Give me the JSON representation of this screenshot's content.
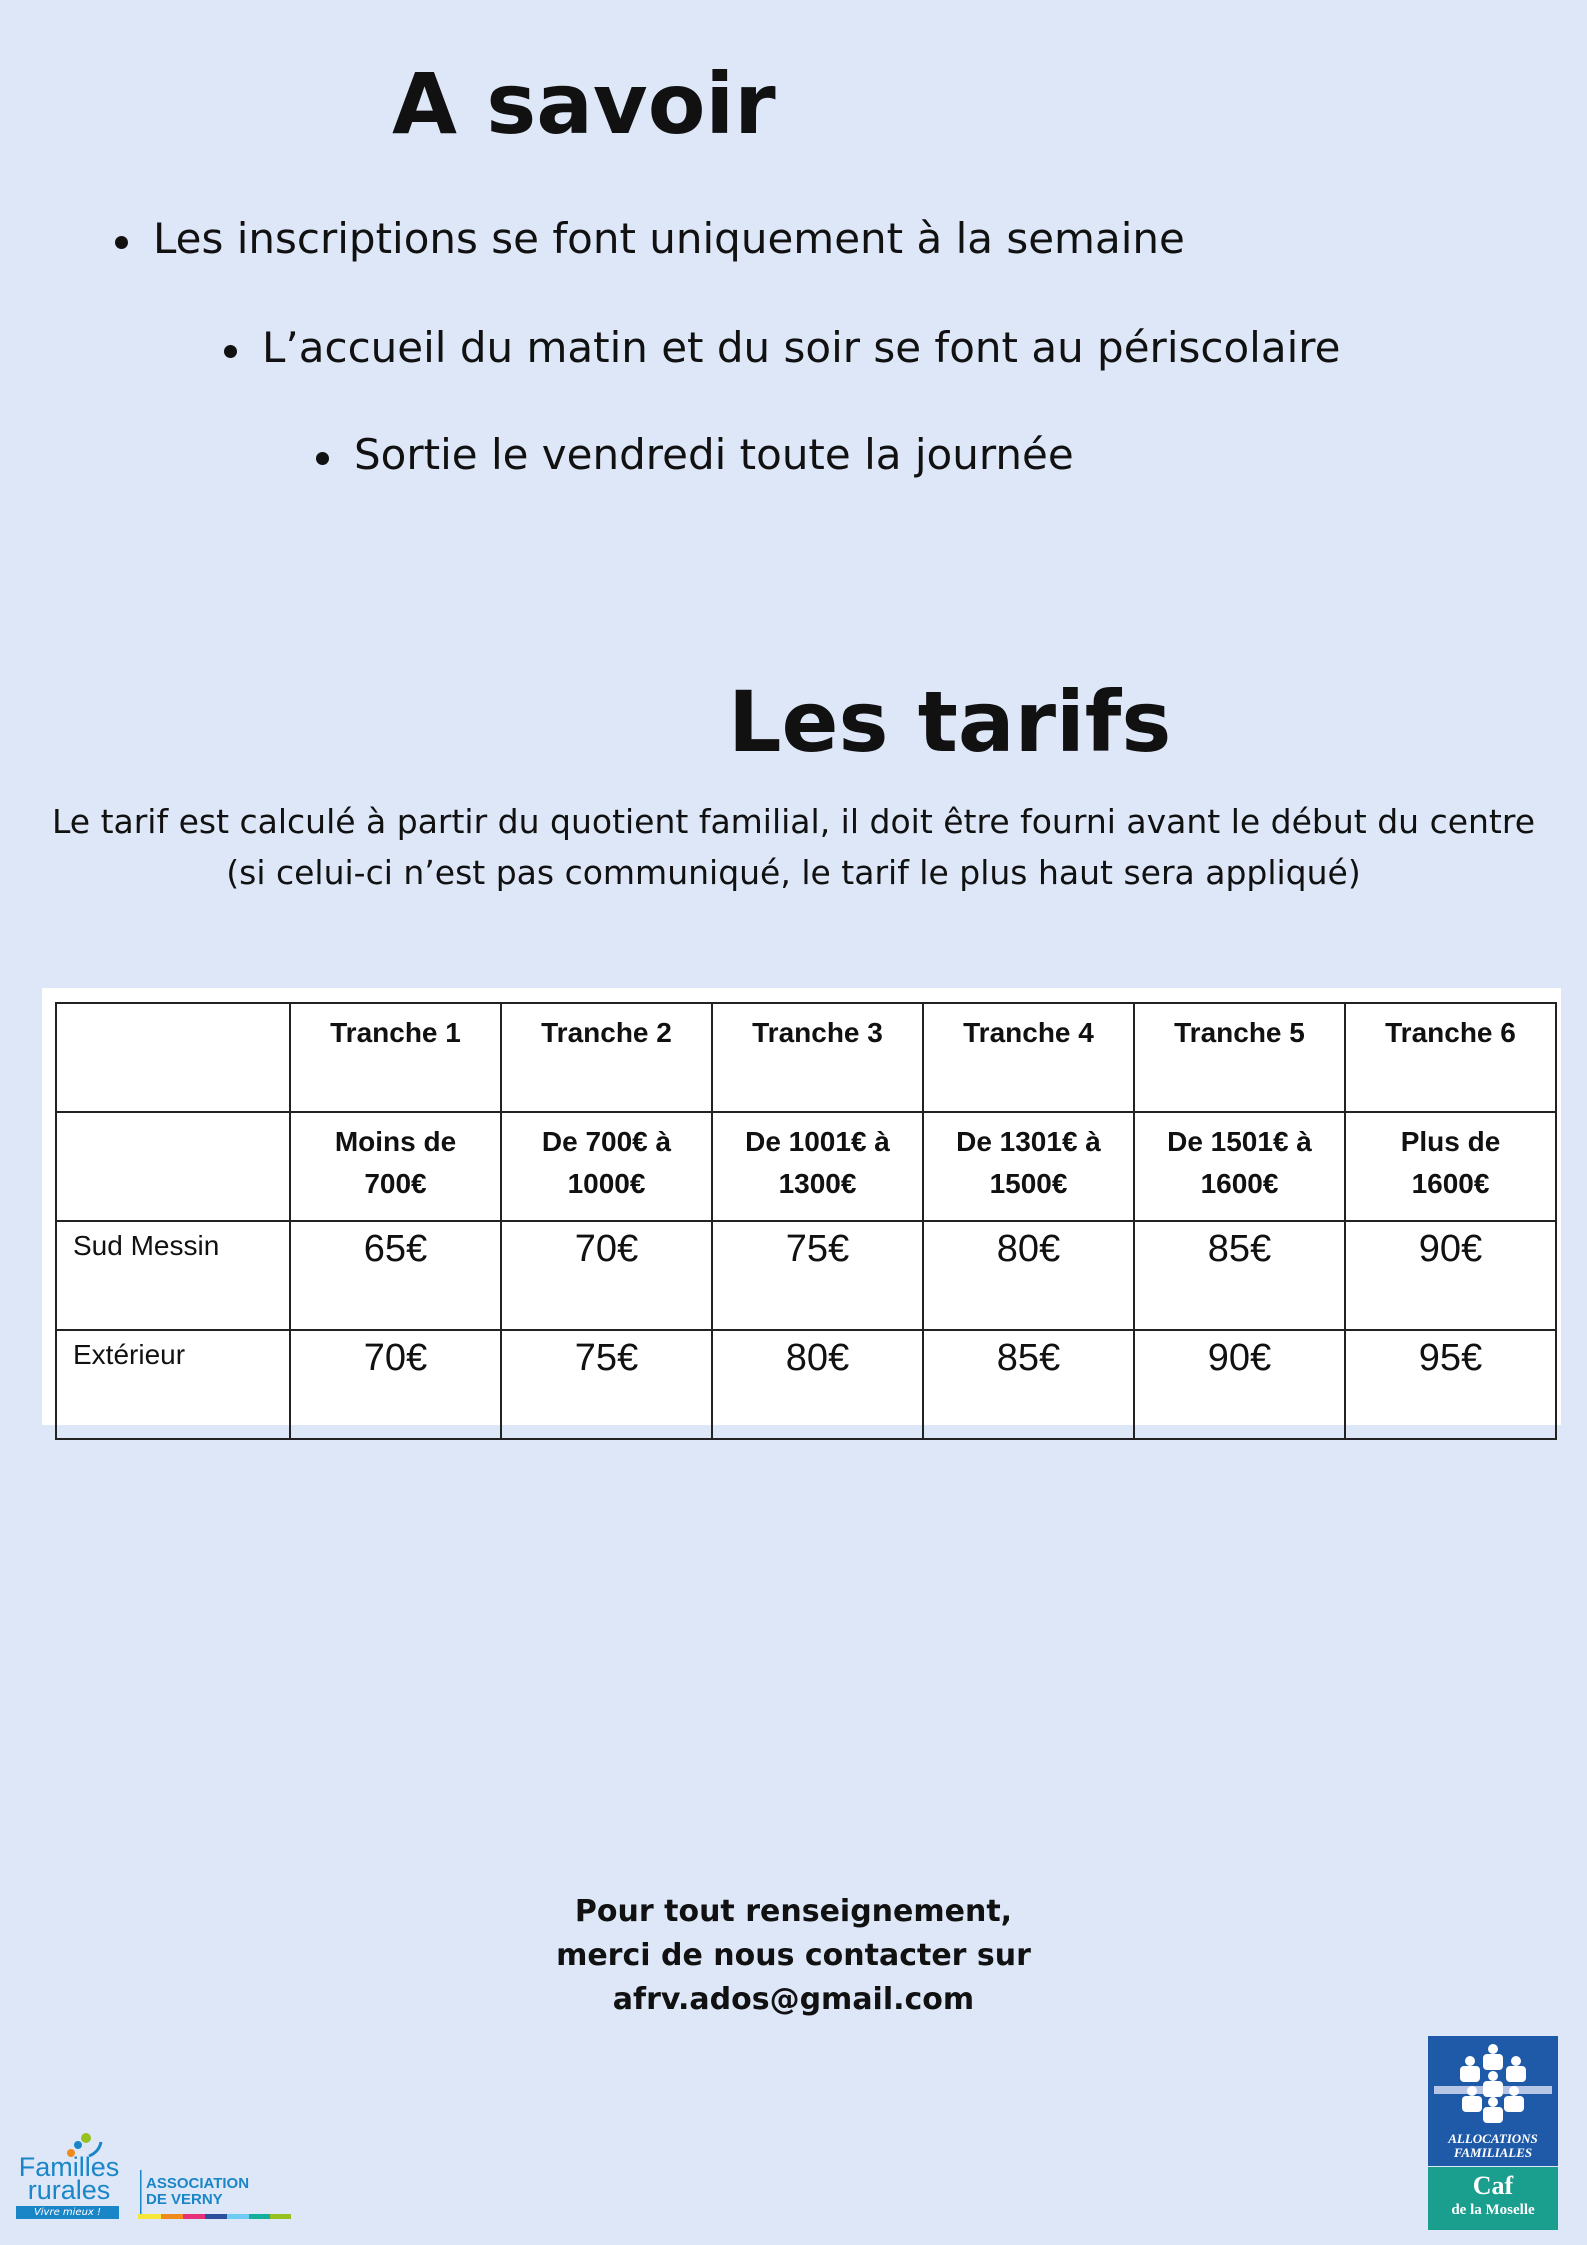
{
  "savoir": {
    "title": "A savoir",
    "bullets": [
      "Les inscriptions se font uniquement à la semaine",
      "L’accueil du matin et du soir se font au périscolaire",
      "Sortie le vendredi toute la journée"
    ]
  },
  "tarifs": {
    "title": "Les tarifs",
    "description_line1": "Le tarif est calculé à partir du quotient familial, il doit être fourni avant le début du centre",
    "description_line2": "(si celui-ci n’est pas communiqué, le tarif le plus haut sera appliqué)",
    "table": {
      "tranches": [
        "Tranche 1",
        "Tranche 2",
        "Tranche 3",
        "Tranche 4",
        "Tranche 5",
        "Tranche 6"
      ],
      "ranges": [
        [
          "Moins de",
          "700€"
        ],
        [
          "De 700€ à",
          "1000€"
        ],
        [
          "De 1001€ à",
          "1300€"
        ],
        [
          "De 1301€ à",
          "1500€"
        ],
        [
          "De 1501€ à",
          "1600€"
        ],
        [
          "Plus de",
          "1600€"
        ]
      ],
      "rows": [
        {
          "label": "Sud Messin",
          "prices": [
            "65€",
            "70€",
            "75€",
            "80€",
            "85€",
            "90€"
          ]
        },
        {
          "label": "Extérieur",
          "prices": [
            "70€",
            "75€",
            "80€",
            "85€",
            "90€",
            "95€"
          ]
        }
      ]
    }
  },
  "contact": {
    "line1": "Pour tout renseignement,",
    "line2": "merci de nous contacter sur",
    "email": "afrv.ados@gmail.com"
  },
  "logos": {
    "familles_rurales": {
      "text1": "Familles",
      "text2": "rurales",
      "slogan": "Vivre mieux !",
      "assoc1": "ASSOCIATION",
      "assoc2": "DE VERNY",
      "color": "#1a86c8"
    },
    "caf": {
      "line1": "ALLOCATIONS",
      "line2": "FAMILIALES",
      "name": "Caf",
      "sub": "de la Moselle",
      "blue": "#1f5aa8",
      "green": "#1a9e8e"
    }
  }
}
